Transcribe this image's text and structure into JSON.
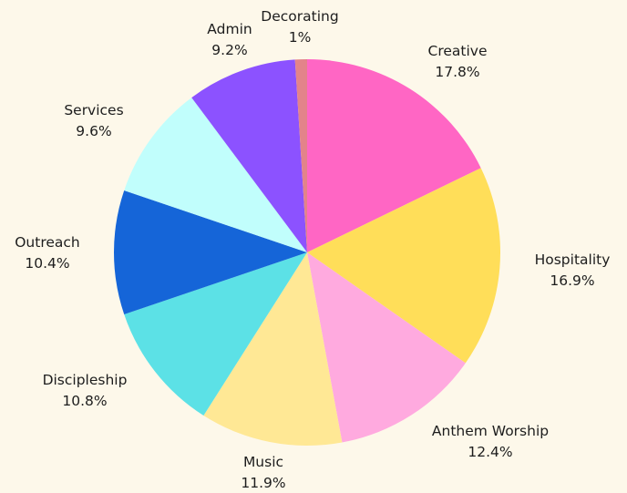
{
  "chart_data": {
    "type": "pie",
    "title": "",
    "start_angle_deg": 0,
    "direction": "clockwise",
    "slices": [
      {
        "label": "Creative",
        "value": 17.8,
        "display": "17.8%",
        "color": "#ff66c4"
      },
      {
        "label": "Hospitality",
        "value": 16.9,
        "display": "16.9%",
        "color": "#ffde59"
      },
      {
        "label": "Anthem Worship",
        "value": 12.4,
        "display": "12.4%",
        "color": "#ffaadf"
      },
      {
        "label": "Music",
        "value": 11.9,
        "display": "11.9%",
        "color": "#ffe895"
      },
      {
        "label": "Discipleship",
        "value": 10.8,
        "display": "10.8%",
        "color": "#5ce1e6"
      },
      {
        "label": "Outreach",
        "value": 10.4,
        "display": "10.4%",
        "color": "#1565d8"
      },
      {
        "label": "Services",
        "value": 9.6,
        "display": "9.6%",
        "color": "#c1fefc"
      },
      {
        "label": "Admin",
        "value": 9.2,
        "display": "9.2%",
        "color": "#8c52ff"
      },
      {
        "label": "Decorating",
        "value": 1,
        "display": "1%",
        "color": "#e3838a"
      }
    ]
  }
}
